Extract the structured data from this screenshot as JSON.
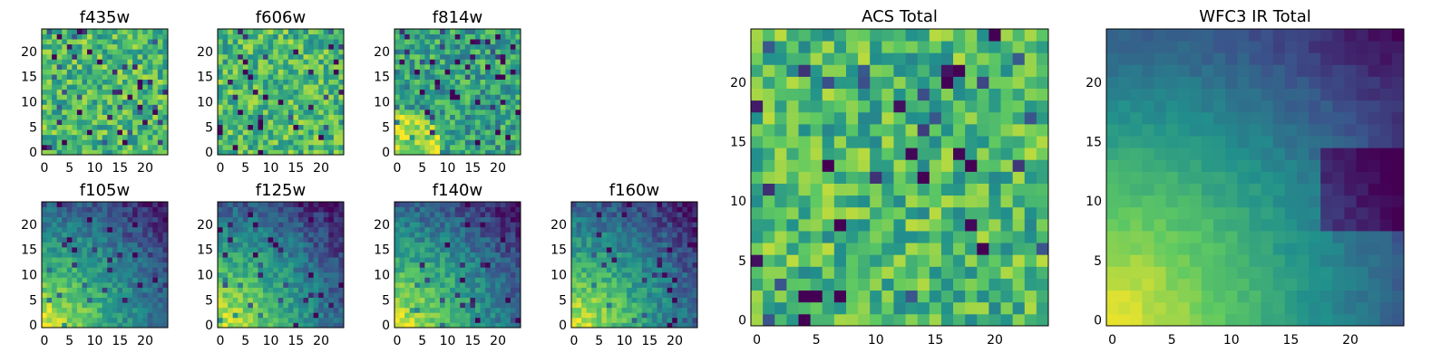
{
  "colormap": [
    "#440154",
    "#3b528b",
    "#21918c",
    "#5ec962",
    "#fde725"
  ],
  "chart_data": [
    {
      "title": "f435w",
      "type": "heatmap",
      "grid_size": [
        25,
        25
      ],
      "pattern": "noise",
      "xticks": [
        "0",
        "5",
        "10",
        "15",
        "20"
      ],
      "yticks": [
        "0",
        "5",
        "10",
        "15",
        "20"
      ],
      "xlim": [
        0,
        24
      ],
      "ylim": [
        0,
        24
      ]
    },
    {
      "title": "f606w",
      "type": "heatmap",
      "grid_size": [
        25,
        25
      ],
      "pattern": "noise",
      "xticks": [
        "0",
        "5",
        "10",
        "15",
        "20"
      ],
      "yticks": [
        "0",
        "5",
        "10",
        "15",
        "20"
      ],
      "xlim": [
        0,
        24
      ],
      "ylim": [
        0,
        24
      ]
    },
    {
      "title": "f814w",
      "type": "heatmap",
      "grid_size": [
        25,
        25
      ],
      "pattern": "noise-corner",
      "xticks": [
        "0",
        "5",
        "10",
        "15",
        "20"
      ],
      "yticks": [
        "0",
        "5",
        "10",
        "15",
        "20"
      ],
      "xlim": [
        0,
        24
      ],
      "ylim": [
        0,
        24
      ]
    },
    {
      "title": "f105w",
      "type": "heatmap",
      "grid_size": [
        25,
        25
      ],
      "pattern": "gradient",
      "xticks": [
        "0",
        "5",
        "10",
        "15",
        "20"
      ],
      "yticks": [
        "0",
        "5",
        "10",
        "15",
        "20"
      ],
      "xlim": [
        0,
        24
      ],
      "ylim": [
        0,
        24
      ]
    },
    {
      "title": "f125w",
      "type": "heatmap",
      "grid_size": [
        25,
        25
      ],
      "pattern": "gradient",
      "xticks": [
        "0",
        "5",
        "10",
        "15",
        "20"
      ],
      "yticks": [
        "0",
        "5",
        "10",
        "15",
        "20"
      ],
      "xlim": [
        0,
        24
      ],
      "ylim": [
        0,
        24
      ]
    },
    {
      "title": "f140w",
      "type": "heatmap",
      "grid_size": [
        25,
        25
      ],
      "pattern": "gradient",
      "xticks": [
        "0",
        "5",
        "10",
        "15",
        "20"
      ],
      "yticks": [
        "0",
        "5",
        "10",
        "15",
        "20"
      ],
      "xlim": [
        0,
        24
      ],
      "ylim": [
        0,
        24
      ]
    },
    {
      "title": "f160w",
      "type": "heatmap",
      "grid_size": [
        25,
        25
      ],
      "pattern": "gradient",
      "xticks": [
        "0",
        "5",
        "10",
        "15",
        "20"
      ],
      "yticks": [
        "0",
        "5",
        "10",
        "15",
        "20"
      ],
      "xlim": [
        0,
        24
      ],
      "ylim": [
        0,
        24
      ]
    },
    {
      "title": "ACS Total",
      "type": "heatmap",
      "grid_size": [
        25,
        25
      ],
      "pattern": "noise",
      "xticks": [
        "0",
        "5",
        "10",
        "15",
        "20"
      ],
      "yticks": [
        "0",
        "5",
        "10",
        "15",
        "20"
      ],
      "xlim": [
        0,
        24
      ],
      "ylim": [
        0,
        24
      ]
    },
    {
      "title": "WFC3 IR Total",
      "type": "heatmap",
      "grid_size": [
        25,
        25
      ],
      "pattern": "gradient-smooth",
      "xticks": [
        "0",
        "5",
        "10",
        "15",
        "20"
      ],
      "yticks": [
        "0",
        "5",
        "10",
        "15",
        "20"
      ],
      "xlim": [
        0,
        24
      ],
      "ylim": [
        0,
        24
      ]
    }
  ]
}
